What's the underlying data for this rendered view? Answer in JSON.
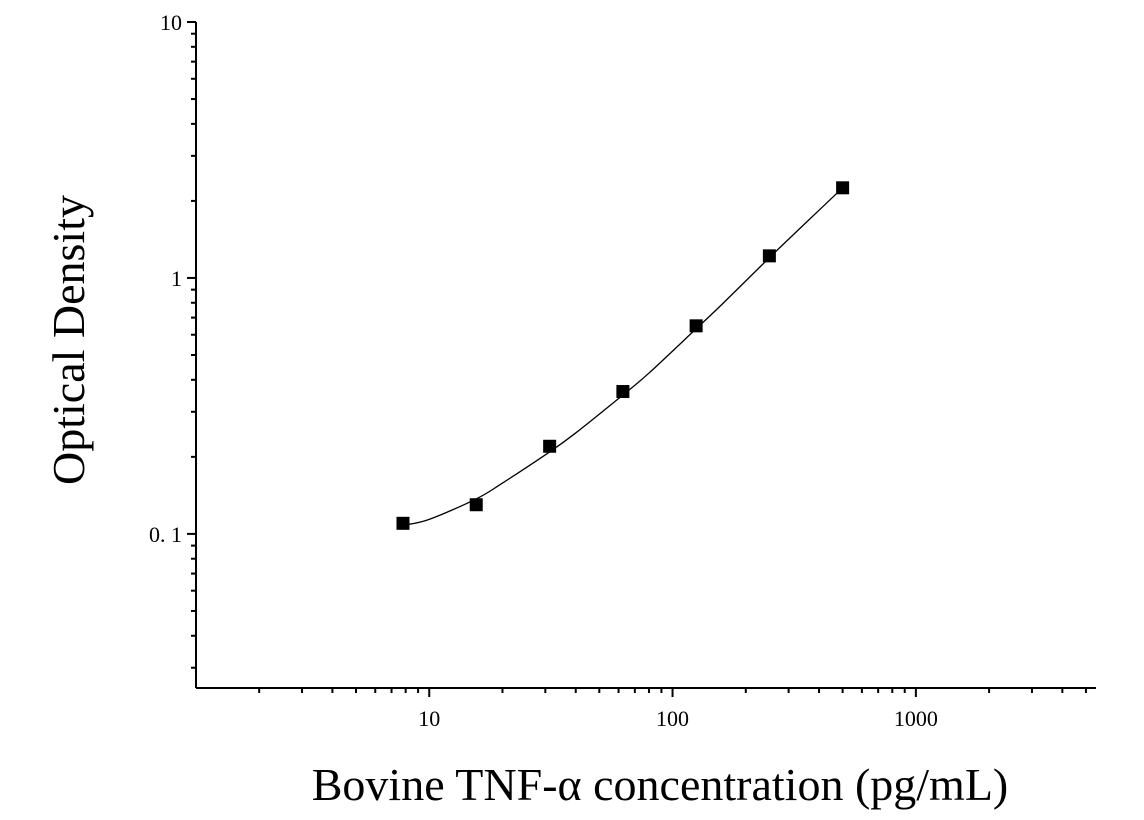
{
  "chart_data": {
    "type": "scatter",
    "title": "",
    "xlabel": "Bovine TNF-α concentration (pg/mL)",
    "ylabel": "Optical Density",
    "x_scale": "log",
    "y_scale": "log",
    "xlim": [
      1.1,
      5500
    ],
    "ylim": [
      0.025,
      10
    ],
    "x_ticks": [
      {
        "value": 10,
        "label": "10"
      },
      {
        "value": 100,
        "label": "100"
      },
      {
        "value": 1000,
        "label": "1000"
      }
    ],
    "y_ticks": [
      {
        "value": 0.1,
        "label": "0. 1"
      },
      {
        "value": 1,
        "label": "1"
      },
      {
        "value": 10,
        "label": "10"
      }
    ],
    "grid": false,
    "legend": "none",
    "colors": {
      "marker": "#000000",
      "curve": "#000000",
      "axis": "#000000"
    },
    "series": [
      {
        "marker": "square",
        "x": [
          7.8,
          15.6,
          31.25,
          62.5,
          125,
          250,
          500
        ],
        "y": [
          0.11,
          0.13,
          0.22,
          0.36,
          0.65,
          1.22,
          2.25
        ]
      }
    ],
    "fit_curve": {
      "description": "smooth fitted curve through points",
      "x": [
        7.8,
        10,
        15.6,
        20,
        31.25,
        40,
        62.5,
        80,
        125,
        160,
        250,
        350,
        500
      ],
      "y": [
        0.108,
        0.114,
        0.137,
        0.158,
        0.209,
        0.248,
        0.349,
        0.425,
        0.633,
        0.79,
        1.2,
        1.63,
        2.25
      ]
    }
  }
}
